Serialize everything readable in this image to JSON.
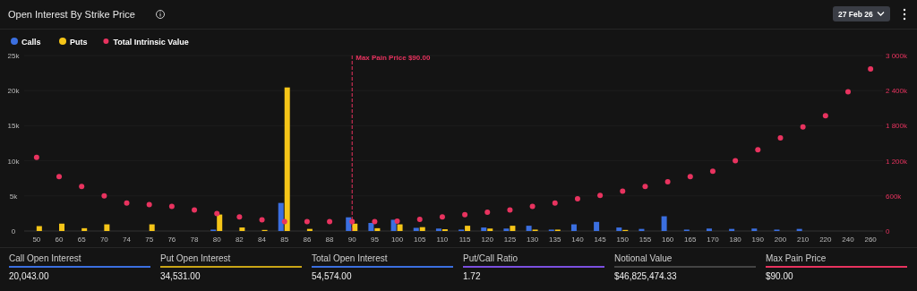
{
  "chart_data": {
    "type": "bar",
    "title": "Open Interest By Strike Price",
    "categories": [
      "50",
      "60",
      "65",
      "70",
      "74",
      "75",
      "76",
      "78",
      "80",
      "82",
      "84",
      "85",
      "86",
      "88",
      "90",
      "95",
      "100",
      "105",
      "110",
      "115",
      "120",
      "125",
      "130",
      "135",
      "140",
      "145",
      "150",
      "155",
      "160",
      "165",
      "170",
      "180",
      "190",
      "200",
      "210",
      "220",
      "240",
      "260"
    ],
    "series": [
      {
        "name": "Calls",
        "color": "#3b6fe0",
        "values": [
          0,
          0,
          0,
          0,
          0,
          0,
          0,
          0,
          200,
          0,
          0,
          4000,
          0,
          0,
          1950,
          1150,
          1600,
          450,
          350,
          200,
          500,
          350,
          750,
          200,
          950,
          1300,
          500,
          300,
          2100,
          200,
          350,
          300,
          350,
          200,
          300,
          0,
          0,
          0
        ]
      },
      {
        "name": "Puts",
        "color": "#f5c518",
        "values": [
          700,
          1050,
          400,
          950,
          0,
          950,
          0,
          0,
          2350,
          500,
          150,
          20450,
          300,
          0,
          1050,
          400,
          950,
          550,
          250,
          750,
          350,
          750,
          200,
          200,
          0,
          0,
          150,
          0,
          0,
          0,
          0,
          0,
          0,
          0,
          0,
          0,
          0,
          0
        ]
      },
      {
        "name": "Total Intrinsic Value",
        "type": "scatter",
        "axis": "y2",
        "color": "#e8335f",
        "values": [
          1260,
          930,
          760,
          600,
          480,
          450,
          420,
          360,
          300,
          240,
          190,
          160,
          160,
          160,
          160,
          160,
          170,
          200,
          240,
          280,
          320,
          360,
          420,
          480,
          550,
          610,
          680,
          760,
          840,
          930,
          1020,
          1200,
          1390,
          1590,
          1780,
          1970,
          2380,
          2770
        ]
      }
    ],
    "ylim": [
      0,
      25000
    ],
    "yticks": [
      0,
      {
        "value": 5000,
        "label": "5k"
      },
      {
        "value": 10000,
        "label": "10k"
      },
      {
        "value": 15000,
        "label": "15k"
      },
      {
        "value": 20000,
        "label": "20k"
      },
      {
        "value": 25000,
        "label": "25k"
      }
    ],
    "y2lim": [
      0,
      3000
    ],
    "y2ticks": [
      0,
      {
        "value": 600,
        "label": "600k"
      },
      {
        "value": 1200,
        "label": "1 200k"
      },
      {
        "value": 1800,
        "label": "1 800k"
      },
      {
        "value": 2400,
        "label": "2 400k"
      },
      {
        "value": 3000,
        "label": "3 000k"
      }
    ],
    "ref_lines": [
      {
        "axis": "x",
        "value": "90",
        "label": "Max Pain Price $90.00",
        "color": "#e8335f",
        "line_style": "dashed"
      }
    ],
    "grid": "y",
    "legend": "top left",
    "marker": "circle",
    "annotations": [
      "27 Feb 26",
      "Call Open Interest",
      "20,043.00",
      "Put Open Interest",
      "34,531.00",
      "Total Open Interest",
      "54,574.00",
      "Put/Call Ratio",
      "1.72",
      "Notional Value",
      "$46,825,474.33",
      "Max Pain Price",
      "$90.00"
    ]
  }
}
